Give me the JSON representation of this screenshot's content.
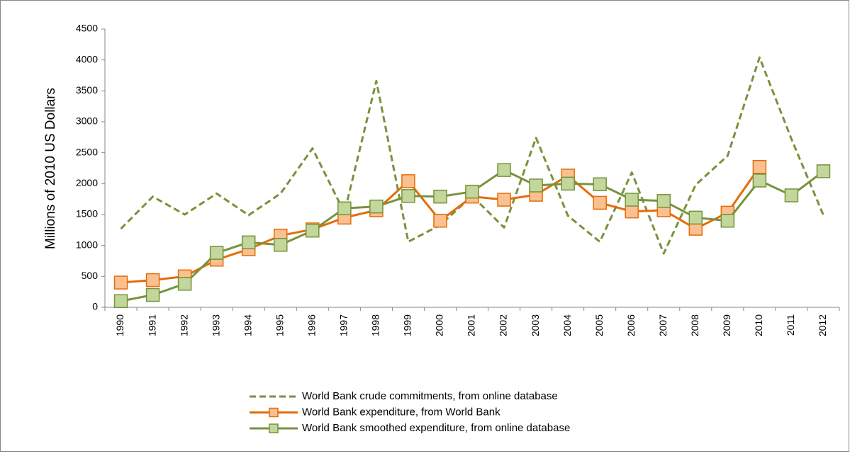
{
  "chart_data": {
    "type": "line",
    "y_label": "Millions of 2010 US Dollars",
    "categories": [
      "1990",
      "1991",
      "1992",
      "1993",
      "1994",
      "1995",
      "1996",
      "1997",
      "1998",
      "1999",
      "2000",
      "2001",
      "2002",
      "2003",
      "2004",
      "2005",
      "2006",
      "2007",
      "2008",
      "2009",
      "2010",
      "2011",
      "2012"
    ],
    "ylim": [
      0,
      4500
    ],
    "yticks": [
      0,
      500,
      1000,
      1500,
      2000,
      2500,
      3000,
      3500,
      4000,
      4500
    ],
    "grid": false,
    "legend": "bottom",
    "series": [
      {
        "name": "World Bank crude commitments, from online database",
        "color": "#77933c",
        "dash": true,
        "marker": false,
        "values": [
          1270,
          1790,
          1500,
          1840,
          1490,
          1840,
          2570,
          1530,
          3660,
          1060,
          1330,
          1800,
          1290,
          2740,
          1480,
          1060,
          2180,
          870,
          1980,
          2450,
          4040,
          2720,
          1490
        ]
      },
      {
        "name": "World Bank expenditure, from World Bank",
        "color": "#e46c0a",
        "marker_fill": "#fac090",
        "dash": false,
        "marker": true,
        "values": [
          400,
          440,
          500,
          770,
          940,
          1160,
          1260,
          1450,
          1570,
          2040,
          1400,
          1790,
          1740,
          1820,
          2130,
          1690,
          1550,
          1570,
          1270,
          1530,
          2270,
          null,
          null
        ]
      },
      {
        "name": "World Bank smoothed expenditure, from online database",
        "color": "#77933c",
        "marker_fill": "#c3d69b",
        "dash": false,
        "marker": true,
        "values": [
          100,
          200,
          380,
          880,
          1050,
          1010,
          1240,
          1600,
          1630,
          1800,
          1790,
          1870,
          2220,
          1970,
          2000,
          1990,
          1740,
          1720,
          1450,
          1400,
          2050,
          1810,
          2200
        ]
      }
    ]
  }
}
